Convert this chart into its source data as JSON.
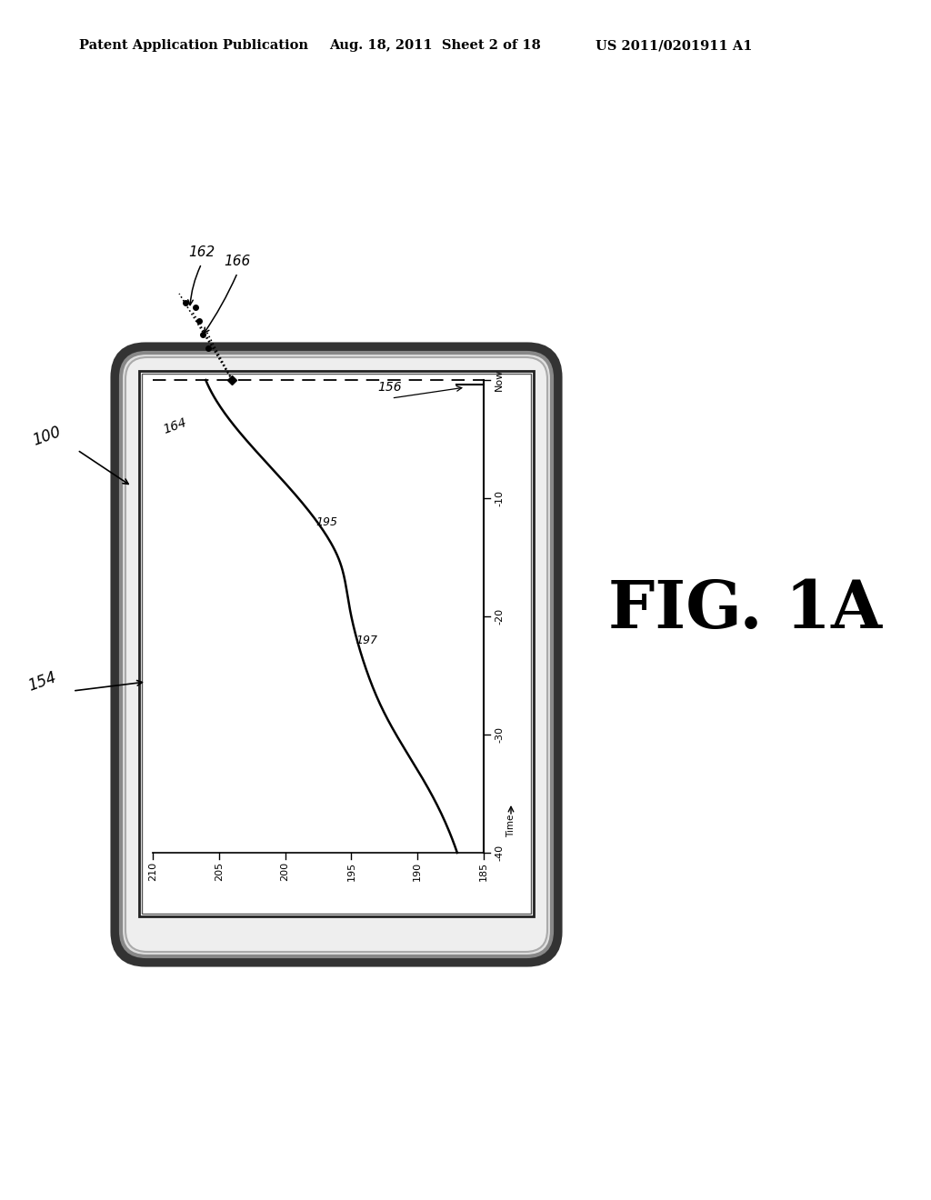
{
  "bg_color": "#ffffff",
  "header_left": "Patent Application Publication",
  "header_mid": "Aug. 18, 2011  Sheet 2 of 18",
  "header_right": "US 2011/0201911 A1",
  "fig_label": "FIG. 1A",
  "device_label": "100",
  "screen_label": "154",
  "ref_162": "162",
  "ref_166": "166",
  "ref_164": "164",
  "ref_156": "156",
  "ref_195": "195",
  "ref_197": "197",
  "x_ticks": [
    210,
    205,
    200,
    195,
    190,
    185
  ],
  "y_tick_labels": [
    "Now",
    "-10",
    "-20",
    "-30",
    "-40"
  ],
  "time_label": "Time"
}
